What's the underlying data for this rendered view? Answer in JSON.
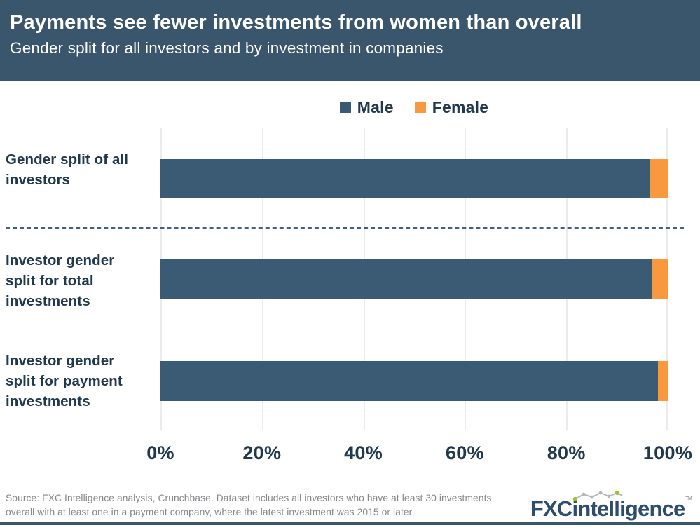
{
  "header": {
    "title": "Payments see fewer investments from women than overall",
    "subtitle": "Gender split for all investors and by investment in companies",
    "background_color": "#3A566D",
    "text_color": "#FFFFFF"
  },
  "legend": {
    "items": [
      {
        "label": "Male",
        "color": "#3B5A74"
      },
      {
        "label": "Female",
        "color": "#F8993F"
      }
    ]
  },
  "chart_data": {
    "type": "bar",
    "orientation": "horizontal",
    "stacked": true,
    "units": "percent",
    "title": "Payments see fewer investments from women than overall",
    "subtitle": "Gender split for all investors and by investment in companies",
    "categories": [
      "Gender split of all investors",
      "Investor gender split for total investments",
      "Investor gender split for payment investments"
    ],
    "category_lines": [
      [
        "Gender split of all",
        "investors"
      ],
      [
        "Investor gender",
        "split for total",
        "investments"
      ],
      [
        "Investor gender",
        "split for payment",
        "investments"
      ]
    ],
    "series": [
      {
        "name": "Male",
        "color": "#3B5A74",
        "values": [
          96.5,
          97,
          98
        ]
      },
      {
        "name": "Female",
        "color": "#F8993F",
        "values": [
          3.5,
          3,
          2
        ]
      }
    ],
    "x_ticks": [
      "0%",
      "20%",
      "40%",
      "60%",
      "80%",
      "100%"
    ],
    "xlim": [
      0,
      100
    ],
    "grid": "vertical",
    "legend_position": "top-center",
    "divider_after_row": 1
  },
  "footer": {
    "source_lines": [
      "Source: FXC Intelligence analysis, Crunchbase. Dataset includes all investors who have at least 30 investments",
      "overall with at least one in a payment company, where the latest investment was 2015 or later."
    ],
    "logo": {
      "brand_prefix": "FXC",
      "brand_suffix": "intelligence",
      "trademark": "TM",
      "navy": "#2D4D6E",
      "green": "#9DC131",
      "sparkline_gray": "#B5B8BB"
    }
  },
  "colors": {
    "male": "#3B5A74",
    "female": "#F8993F",
    "navy_text": "#20394F",
    "gridline": "#EBEBEB",
    "footer_gray": "#85878A",
    "bottom_bar": "#3A566D"
  }
}
